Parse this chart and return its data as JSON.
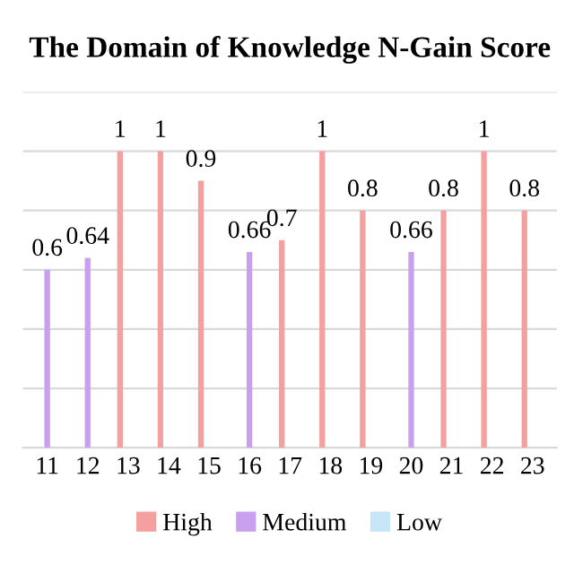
{
  "chart_data": {
    "type": "bar",
    "title": "The Domain of Knowledge N-Gain Score",
    "categories": [
      "11",
      "12",
      "13",
      "14",
      "15",
      "16",
      "17",
      "18",
      "19",
      "20",
      "21",
      "22",
      "23"
    ],
    "series": [
      {
        "name": "High",
        "color": "#f4a0a0",
        "values": [
          null,
          null,
          1,
          1,
          0.9,
          null,
          0.7,
          1,
          0.8,
          null,
          0.8,
          1,
          0.8
        ]
      },
      {
        "name": "Medium",
        "color": "#c9a0f0",
        "values": [
          0.6,
          0.64,
          null,
          null,
          null,
          0.66,
          null,
          null,
          null,
          0.66,
          null,
          null,
          null
        ]
      },
      {
        "name": "Low",
        "color": "#c6e6f7",
        "values": [
          null,
          null,
          null,
          null,
          null,
          null,
          null,
          null,
          null,
          null,
          null,
          null,
          null
        ]
      }
    ],
    "ylim": [
      0,
      1.2
    ],
    "yticks": [
      {
        "value": 0,
        "label": null
      },
      {
        "value": 0.2,
        "label": null
      },
      {
        "value": 0.4,
        "label": null
      },
      {
        "value": 0.6,
        "label": null
      },
      {
        "value": 0.8,
        "label": null
      },
      {
        "value": 1,
        "label": null
      },
      {
        "value": 1.2,
        "label": null
      }
    ],
    "tick_labels": "x",
    "grid": "y",
    "legend": "bottom",
    "data_labels": true
  }
}
